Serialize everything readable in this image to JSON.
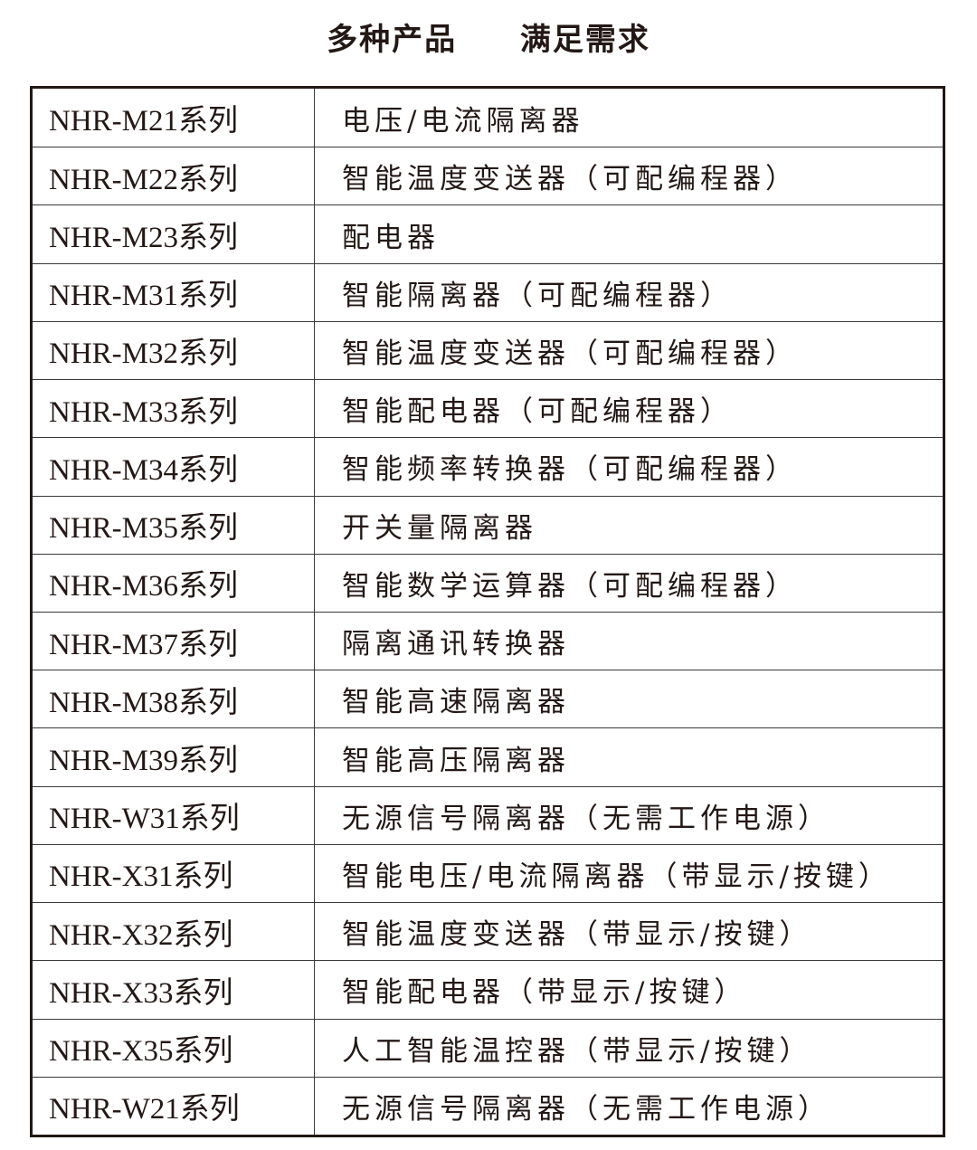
{
  "title": [
    "多种产品",
    "满足需求"
  ],
  "rows": [
    {
      "series": "NHR-M21系列",
      "desc": "电压/电流隔离器"
    },
    {
      "series": "NHR-M22系列",
      "desc": "智能温度变送器（可配编程器）"
    },
    {
      "series": "NHR-M23系列",
      "desc": "配电器"
    },
    {
      "series": "NHR-M31系列",
      "desc": "智能隔离器（可配编程器）"
    },
    {
      "series": "NHR-M32系列",
      "desc": "智能温度变送器（可配编程器）"
    },
    {
      "series": "NHR-M33系列",
      "desc": "智能配电器（可配编程器）"
    },
    {
      "series": "NHR-M34系列",
      "desc": "智能频率转换器（可配编程器）"
    },
    {
      "series": "NHR-M35系列",
      "desc": "开关量隔离器"
    },
    {
      "series": "NHR-M36系列",
      "desc": "智能数学运算器（可配编程器）"
    },
    {
      "series": "NHR-M37系列",
      "desc": "隔离通讯转换器"
    },
    {
      "series": "NHR-M38系列",
      "desc": "智能高速隔离器"
    },
    {
      "series": "NHR-M39系列",
      "desc": "智能高压隔离器"
    },
    {
      "series": "NHR-W31系列",
      "desc": "无源信号隔离器（无需工作电源）"
    },
    {
      "series": "NHR-X31系列",
      "desc": "智能电压/电流隔离器（带显示/按键）"
    },
    {
      "series": "NHR-X32系列",
      "desc": "智能温度变送器（带显示/按键）"
    },
    {
      "series": "NHR-X33系列",
      "desc": "智能配电器（带显示/按键）"
    },
    {
      "series": "NHR-X35系列",
      "desc": "人工智能温控器（带显示/按键）"
    },
    {
      "series": "NHR-W21系列",
      "desc": "无源信号隔离器（无需工作电源）"
    }
  ]
}
